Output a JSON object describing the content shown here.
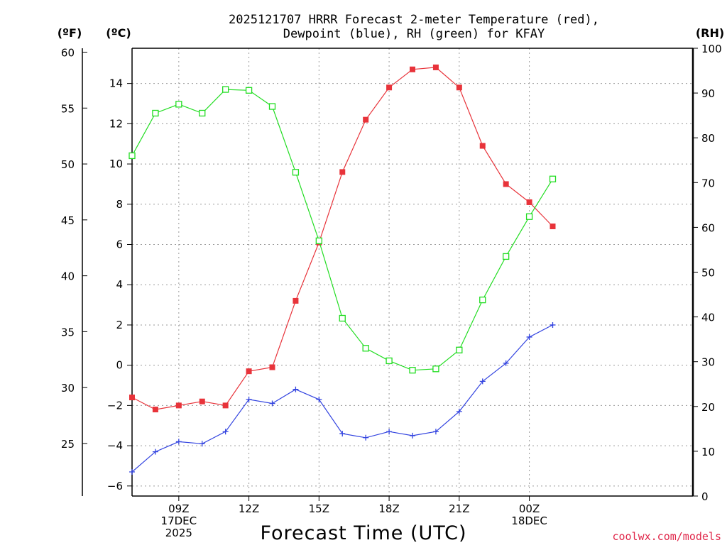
{
  "chart_data": {
    "type": "line",
    "title_lines": [
      "2025121707 HRRR Forecast 2-meter Temperature (red),",
      "Dewpoint (blue), RH (green) for KFAY"
    ],
    "xlabel": "Forecast Time (UTC)",
    "credit": "coolwx.com/models",
    "credit_color": "#e0284b",
    "units": {
      "fahrenheit": "(ºF)",
      "celsius": "(ºC)",
      "rh": "(RH)"
    },
    "x_range": [
      7,
      31
    ],
    "x_ticks": [
      {
        "x": 9,
        "lines": [
          "09Z",
          "17DEC",
          "2025"
        ]
      },
      {
        "x": 12,
        "lines": [
          "12Z"
        ]
      },
      {
        "x": 15,
        "lines": [
          "15Z"
        ]
      },
      {
        "x": 18,
        "lines": [
          "18Z"
        ]
      },
      {
        "x": 21,
        "lines": [
          "21Z"
        ]
      },
      {
        "x": 24,
        "lines": [
          "00Z",
          "18DEC"
        ]
      }
    ],
    "celsius_axis": {
      "range": [
        -6.5,
        15.75
      ],
      "ticks": [
        "14",
        "12",
        "10",
        "8",
        "6",
        "4",
        "2",
        "0",
        "−2",
        "−4",
        "−6"
      ],
      "tick_values": [
        14,
        12,
        10,
        8,
        6,
        4,
        2,
        0,
        -2,
        -4,
        -6
      ]
    },
    "fahrenheit_axis": {
      "ticks": [
        "60",
        "55",
        "50",
        "45",
        "40",
        "35",
        "30",
        "25"
      ],
      "tick_values": [
        60,
        55,
        50,
        45,
        40,
        35,
        30,
        25
      ]
    },
    "rh_axis": {
      "range": [
        0,
        100
      ],
      "ticks": [
        "100",
        "90",
        "80",
        "70",
        "60",
        "50",
        "40",
        "30",
        "20",
        "10",
        "0"
      ],
      "tick_values": [
        100,
        90,
        80,
        70,
        60,
        50,
        40,
        30,
        20,
        10,
        0
      ]
    },
    "x": [
      7,
      8,
      9,
      10,
      11,
      12,
      13,
      14,
      15,
      16,
      17,
      18,
      19,
      20,
      21,
      22,
      23,
      24,
      25
    ],
    "series": [
      {
        "name": "2-meter Temperature",
        "axis": "celsius",
        "color": "#e8333a",
        "marker": "filled-square",
        "values": [
          -1.6,
          -2.2,
          -2.0,
          -1.8,
          -2.0,
          -0.3,
          -0.1,
          3.2,
          6.1,
          9.6,
          12.2,
          13.8,
          14.7,
          14.8,
          13.8,
          10.9,
          9.0,
          8.1,
          6.9
        ]
      },
      {
        "name": "Dewpoint",
        "axis": "celsius",
        "color": "#3344e0",
        "marker": "plus",
        "values": [
          -5.3,
          -4.3,
          -3.8,
          -3.9,
          -3.3,
          -1.7,
          -1.9,
          -1.2,
          -1.7,
          -3.4,
          -3.6,
          -3.3,
          -3.5,
          -3.3,
          -2.3,
          -0.8,
          0.1,
          1.4,
          2.0
        ]
      },
      {
        "name": "RH",
        "axis": "rh",
        "color": "#22dd22",
        "marker": "open-square",
        "values": [
          76,
          85.5,
          87.5,
          85.5,
          90.8,
          90.6,
          87,
          72.3,
          57,
          39.7,
          33,
          30.2,
          28.1,
          28.4,
          32.6,
          43.8,
          53.5,
          62.4,
          70.8
        ]
      }
    ]
  }
}
